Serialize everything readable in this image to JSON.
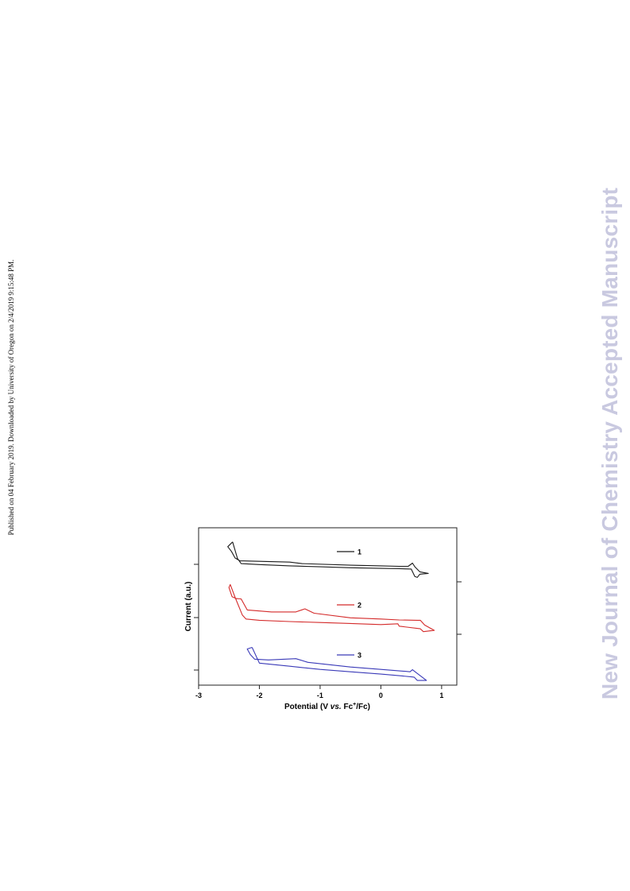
{
  "side_note": "Published on 04 February 2019. Downloaded by University of Oregon on 2/4/2019 9:15:48 PM.",
  "watermark": {
    "text": "New Journal of Chemistry Accepted Manuscript",
    "color": "#c9c9e0"
  },
  "chart_data": {
    "type": "line",
    "xlabel_prefix": "Potential (V ",
    "xlabel_italic": "vs.",
    "xlabel_mid": " Fc",
    "xlabel_sup": "+",
    "xlabel_suffix": "/Fc)",
    "ylabel": "Current (a.u.)",
    "xlim": [
      -3,
      1.25
    ],
    "xticks": [
      "-3",
      "-2",
      "-1",
      "0",
      "1"
    ],
    "xtick_values": [
      -3,
      -2,
      -1,
      0,
      1
    ],
    "ylim": [
      0,
      1
    ],
    "legend_position": "inside-top-right",
    "series": [
      {
        "name": "1",
        "color": "#1a1a1a",
        "x": [
          -2.44,
          -2.52,
          -2.46,
          -2.4,
          -2.32,
          -1.5,
          -1.3,
          -0.5,
          0.0,
          0.3,
          0.45,
          0.52,
          0.56,
          0.64,
          0.78,
          0.64,
          0.6,
          0.56,
          0.5,
          0.3,
          0.0,
          -0.5,
          -1.0,
          -1.5,
          -2.0,
          -2.3,
          -2.36,
          -2.44
        ],
        "y": [
          0.91,
          0.88,
          0.85,
          0.808,
          0.79,
          0.782,
          0.772,
          0.762,
          0.758,
          0.755,
          0.755,
          0.775,
          0.752,
          0.72,
          0.71,
          0.705,
          0.685,
          0.69,
          0.738,
          0.74,
          0.742,
          0.746,
          0.752,
          0.758,
          0.766,
          0.772,
          0.805,
          0.91
        ]
      },
      {
        "name": "2",
        "color": "#d42a2a",
        "x": [
          -2.48,
          -2.5,
          -2.45,
          -2.38,
          -2.3,
          -2.2,
          -1.8,
          -1.4,
          -1.25,
          -1.1,
          -0.5,
          0.0,
          0.3,
          0.6,
          0.65,
          0.72,
          0.88,
          0.7,
          0.65,
          0.3,
          0.28,
          0.0,
          -0.5,
          -1.0,
          -1.5,
          -2.0,
          -2.22,
          -2.28,
          -2.4,
          -2.48
        ],
        "y": [
          0.64,
          0.62,
          0.562,
          0.55,
          0.548,
          0.478,
          0.465,
          0.465,
          0.485,
          0.457,
          0.428,
          0.42,
          0.414,
          0.412,
          0.412,
          0.382,
          0.348,
          0.34,
          0.358,
          0.375,
          0.39,
          0.385,
          0.392,
          0.398,
          0.404,
          0.412,
          0.42,
          0.445,
          0.558,
          0.64
        ]
      },
      {
        "name": "3",
        "color": "#3a3ab8",
        "x": [
          -2.12,
          -2.2,
          -2.15,
          -2.08,
          -1.85,
          -1.4,
          -1.2,
          -0.5,
          0.0,
          0.4,
          0.48,
          0.52,
          0.58,
          0.75,
          0.6,
          0.55,
          0.52,
          0.3,
          0.0,
          -0.5,
          -1.0,
          -1.5,
          -2.0,
          -2.12
        ],
        "y": [
          0.24,
          0.23,
          0.195,
          0.165,
          0.16,
          0.168,
          0.145,
          0.115,
          0.1,
          0.088,
          0.085,
          0.098,
          0.08,
          0.03,
          0.03,
          0.05,
          0.052,
          0.06,
          0.07,
          0.085,
          0.1,
          0.12,
          0.14,
          0.24
        ]
      }
    ]
  }
}
